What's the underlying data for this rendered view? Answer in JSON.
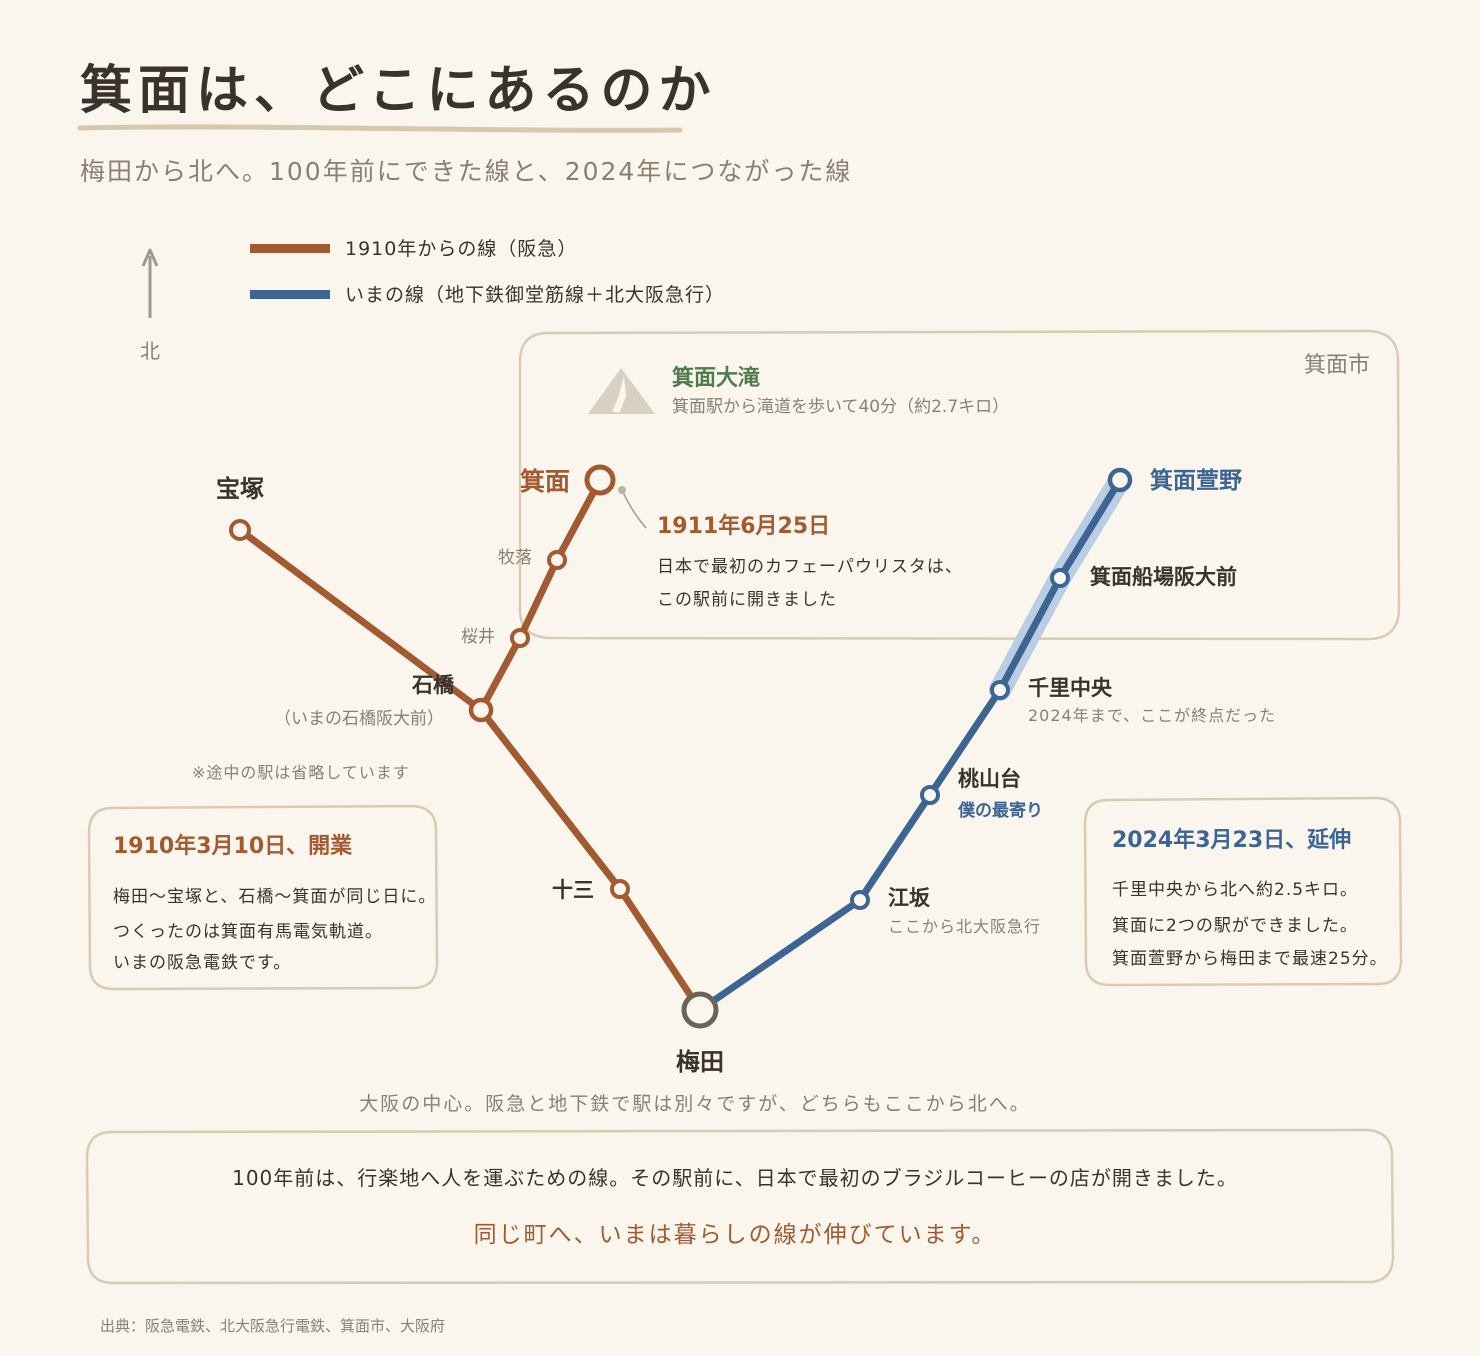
{
  "title": "箕面は、どこにあるのか",
  "subtitle": "梅田から北へ。100年前にできた線と、2024年につながった線",
  "legend": {
    "hankyu": "1910年からの線（阪急）",
    "subway": "いまの線（地下鉄御堂筋線＋北大阪急行）"
  },
  "north_label": "北",
  "region_label": "箕面市",
  "falls": {
    "name": "箕面大滝",
    "note": "箕面駅から滝道を歩いて40分（約2.7キロ）"
  },
  "stations": {
    "minoo": "箕面",
    "makiochi": "牧落",
    "sakurai": "桜井",
    "ishibashi": "石橋",
    "ishibashi_sub": "（いまの石橋阪大前）",
    "takarazuka": "宝塚",
    "juso": "十三",
    "umeda": "梅田",
    "esaka": "江坂",
    "esaka_sub": "ここから北大阪急行",
    "momoyamadai": "桃山台",
    "momoyamadai_sub": "僕の最寄り",
    "senri_chuo": "千里中央",
    "senri_chuo_sub": "2024年まで、ここが終点だった",
    "funaba": "箕面船場阪大前",
    "kayano": "箕面萱野"
  },
  "omit_note": "※途中の駅は省略しています",
  "minoo_callout": {
    "date": "1911年6月25日",
    "line1": "日本で最初のカフェーパウリスタは、",
    "line2": "この駅前に開きました"
  },
  "box_1910": {
    "date": "1910年3月10日、開業",
    "line1": "梅田〜宝塚と、石橋〜箕面が同じ日に。",
    "line2": "つくったのは箕面有馬電気軌道。",
    "line3": "いまの阪急電鉄です。"
  },
  "box_2024": {
    "date": "2024年3月23日、延伸",
    "line1": "千里中央から北へ約2.5キロ。",
    "line2": "箕面に2つの駅ができました。",
    "line3": "箕面萱野から梅田まで最速25分。"
  },
  "umeda_note": "大阪の中心。阪急と地下鉄で駅は別々ですが、どちらもここから北へ。",
  "footer": {
    "line1": "100年前は、行楽地へ人を運ぶための線。その駅前に、日本で最初のブラジルコーヒーの店が開きました。",
    "line2": "同じ町へ、いまは暮らしの線が伸びています。"
  },
  "source": "出典：阪急電鉄、北大阪急行電鉄、箕面市、大阪府",
  "colors": {
    "hankyu": "#a45a31",
    "subway": "#3d6593",
    "extension_highlight": "#b9cde4",
    "background": "#faf6ee",
    "box_border": "#d9cbb4"
  }
}
